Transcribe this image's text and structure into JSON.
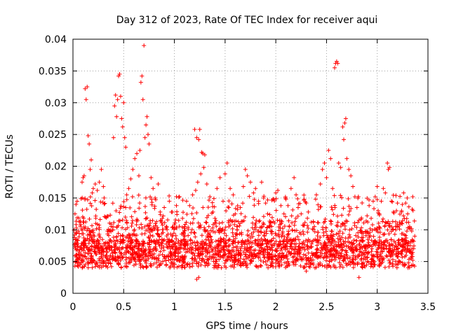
{
  "chart_data": {
    "type": "scatter",
    "title": "Day 312 of 2023, Rate Of TEC Index for receiver aqui",
    "xlabel": "GPS time / hours",
    "ylabel": "ROTI / TECUs",
    "xlim": [
      0,
      3.5
    ],
    "ylim": [
      0,
      0.04
    ],
    "xticks": [
      0,
      0.5,
      1,
      1.5,
      2,
      2.5,
      3,
      3.5
    ],
    "xtick_labels": [
      "0",
      "0.5",
      "1",
      "1.5",
      "2",
      "2.5",
      "3",
      "3.5"
    ],
    "yticks": [
      0,
      0.005,
      0.01,
      0.015,
      0.02,
      0.025,
      0.03,
      0.035,
      0.04
    ],
    "ytick_labels": [
      "0",
      "0.005",
      "0.01",
      "0.015",
      "0.02",
      "0.025",
      "0.03",
      "0.035",
      "0.04"
    ],
    "grid": true,
    "marker": "+",
    "color": "#ff0000",
    "series": [
      {
        "name": "ROTI",
        "points": [
          [
            0.02,
            0.0125
          ],
          [
            0.03,
            0.014
          ],
          [
            0.05,
            0.0098
          ],
          [
            0.06,
            0.0062
          ],
          [
            0.07,
            0.0045
          ],
          [
            0.08,
            0.0075
          ],
          [
            0.09,
            0.0175
          ],
          [
            0.1,
            0.0182
          ],
          [
            0.11,
            0.0185
          ],
          [
            0.12,
            0.0322
          ],
          [
            0.13,
            0.0305
          ],
          [
            0.14,
            0.0325
          ],
          [
            0.15,
            0.0248
          ],
          [
            0.16,
            0.0235
          ],
          [
            0.17,
            0.0195
          ],
          [
            0.18,
            0.021
          ],
          [
            0.19,
            0.0158
          ],
          [
            0.2,
            0.0165
          ],
          [
            0.22,
            0.0172
          ],
          [
            0.24,
            0.0162
          ],
          [
            0.26,
            0.0175
          ],
          [
            0.28,
            0.0195
          ],
          [
            0.3,
            0.0168
          ],
          [
            0.32,
            0.012
          ],
          [
            0.34,
            0.0098
          ],
          [
            0.36,
            0.0075
          ],
          [
            0.38,
            0.0042
          ],
          [
            0.4,
            0.0245
          ],
          [
            0.41,
            0.0295
          ],
          [
            0.42,
            0.0312
          ],
          [
            0.43,
            0.0278
          ],
          [
            0.44,
            0.0305
          ],
          [
            0.45,
            0.0342
          ],
          [
            0.46,
            0.0345
          ],
          [
            0.47,
            0.031
          ],
          [
            0.48,
            0.0275
          ],
          [
            0.49,
            0.0262
          ],
          [
            0.5,
            0.03
          ],
          [
            0.51,
            0.0245
          ],
          [
            0.52,
            0.023
          ],
          [
            0.53,
            0.0155
          ],
          [
            0.55,
            0.0165
          ],
          [
            0.57,
            0.018
          ],
          [
            0.59,
            0.0195
          ],
          [
            0.61,
            0.0212
          ],
          [
            0.63,
            0.022
          ],
          [
            0.65,
            0.0185
          ],
          [
            0.66,
            0.0225
          ],
          [
            0.67,
            0.0332
          ],
          [
            0.68,
            0.0342
          ],
          [
            0.69,
            0.0305
          ],
          [
            0.7,
            0.039
          ],
          [
            0.71,
            0.0245
          ],
          [
            0.72,
            0.0265
          ],
          [
            0.73,
            0.0278
          ],
          [
            0.74,
            0.025
          ],
          [
            0.75,
            0.0235
          ],
          [
            0.77,
            0.0182
          ],
          [
            0.79,
            0.0165
          ],
          [
            0.81,
            0.015
          ],
          [
            0.84,
            0.0172
          ],
          [
            0.86,
            0.0128
          ],
          [
            0.88,
            0.0118
          ],
          [
            0.9,
            0.0135
          ],
          [
            0.92,
            0.0105
          ],
          [
            0.95,
            0.0145
          ],
          [
            0.98,
            0.0128
          ],
          [
            1.0,
            0.0108
          ],
          [
            1.02,
            0.0138
          ],
          [
            1.05,
            0.0152
          ],
          [
            1.08,
            0.0118
          ],
          [
            1.1,
            0.0105
          ],
          [
            1.12,
            0.0145
          ],
          [
            1.15,
            0.0138
          ],
          [
            1.18,
            0.0155
          ],
          [
            1.2,
            0.0258
          ],
          [
            1.21,
            0.0162
          ],
          [
            1.22,
            0.0245
          ],
          [
            1.23,
            0.0175
          ],
          [
            1.24,
            0.0242
          ],
          [
            1.25,
            0.0258
          ],
          [
            1.26,
            0.0188
          ],
          [
            1.27,
            0.0222
          ],
          [
            1.28,
            0.022
          ],
          [
            1.29,
            0.0198
          ],
          [
            1.3,
            0.0218
          ],
          [
            1.32,
            0.0172
          ],
          [
            1.35,
            0.0152
          ],
          [
            1.38,
            0.0128
          ],
          [
            1.4,
            0.0118
          ],
          [
            1.42,
            0.0165
          ],
          [
            1.45,
            0.0182
          ],
          [
            1.48,
            0.0145
          ],
          [
            1.5,
            0.0188
          ],
          [
            1.52,
            0.0205
          ],
          [
            1.55,
            0.0165
          ],
          [
            1.58,
            0.0155
          ],
          [
            1.6,
            0.0125
          ],
          [
            1.62,
            0.0105
          ],
          [
            1.65,
            0.0135
          ],
          [
            1.68,
            0.0168
          ],
          [
            1.7,
            0.0195
          ],
          [
            1.72,
            0.0185
          ],
          [
            1.75,
            0.0175
          ],
          [
            1.78,
            0.0158
          ],
          [
            1.8,
            0.0165
          ],
          [
            1.83,
            0.0145
          ],
          [
            1.86,
            0.0175
          ],
          [
            1.88,
            0.015
          ],
          [
            1.9,
            0.0142
          ],
          [
            1.92,
            0.0125
          ],
          [
            1.95,
            0.0112
          ],
          [
            1.98,
            0.0148
          ],
          [
            2.0,
            0.0158
          ],
          [
            2.02,
            0.0162
          ],
          [
            2.05,
            0.0138
          ],
          [
            2.08,
            0.0125
          ],
          [
            2.1,
            0.0148
          ],
          [
            2.12,
            0.0138
          ],
          [
            2.15,
            0.0165
          ],
          [
            2.18,
            0.0182
          ],
          [
            2.2,
            0.0155
          ],
          [
            2.22,
            0.0135
          ],
          [
            2.25,
            0.0125
          ],
          [
            2.28,
            0.0148
          ],
          [
            2.3,
            0.0142
          ],
          [
            2.32,
            0.0128
          ],
          [
            2.35,
            0.0112
          ],
          [
            2.38,
            0.0105
          ],
          [
            2.4,
            0.0155
          ],
          [
            2.42,
            0.0132
          ],
          [
            2.44,
            0.0172
          ],
          [
            2.46,
            0.0195
          ],
          [
            2.48,
            0.0205
          ],
          [
            2.5,
            0.0182
          ],
          [
            2.52,
            0.0225
          ],
          [
            2.54,
            0.0212
          ],
          [
            2.56,
            0.0165
          ],
          [
            2.58,
            0.0355
          ],
          [
            2.59,
            0.0362
          ],
          [
            2.6,
            0.0365
          ],
          [
            2.61,
            0.0362
          ],
          [
            2.62,
            0.0205
          ],
          [
            2.64,
            0.0198
          ],
          [
            2.66,
            0.0262
          ],
          [
            2.67,
            0.0242
          ],
          [
            2.68,
            0.0268
          ],
          [
            2.69,
            0.0275
          ],
          [
            2.7,
            0.0212
          ],
          [
            2.72,
            0.0195
          ],
          [
            2.74,
            0.0185
          ],
          [
            2.76,
            0.0168
          ],
          [
            2.78,
            0.0152
          ],
          [
            2.8,
            0.0135
          ],
          [
            2.82,
            0.0115
          ],
          [
            2.84,
            0.0098
          ],
          [
            2.86,
            0.0088
          ],
          [
            2.88,
            0.0075
          ],
          [
            2.9,
            0.0122
          ],
          [
            2.92,
            0.0138
          ],
          [
            2.94,
            0.0118
          ],
          [
            2.96,
            0.0145
          ],
          [
            2.98,
            0.0152
          ],
          [
            3.0,
            0.0168
          ],
          [
            3.02,
            0.0125
          ],
          [
            3.04,
            0.0145
          ],
          [
            3.06,
            0.0165
          ],
          [
            3.08,
            0.0158
          ],
          [
            3.1,
            0.0205
          ],
          [
            3.11,
            0.0195
          ],
          [
            3.12,
            0.0198
          ],
          [
            3.14,
            0.0145
          ],
          [
            3.16,
            0.0128
          ],
          [
            3.18,
            0.0105
          ],
          [
            3.2,
            0.0142
          ],
          [
            3.22,
            0.0112
          ],
          [
            3.24,
            0.0128
          ],
          [
            3.26,
            0.0158
          ],
          [
            3.28,
            0.0142
          ],
          [
            3.3,
            0.0125
          ],
          [
            3.32,
            0.0105
          ],
          [
            3.34,
            0.0098
          ],
          [
            3.35,
            0.0152
          ],
          [
            3.36,
            0.0082
          ],
          [
            0.04,
            0.0048
          ],
          [
            0.12,
            0.0058
          ],
          [
            0.2,
            0.0052
          ],
          [
            0.28,
            0.0065
          ],
          [
            0.35,
            0.0048
          ],
          [
            0.44,
            0.0058
          ],
          [
            0.52,
            0.0072
          ],
          [
            0.6,
            0.0055
          ],
          [
            0.7,
            0.0068
          ],
          [
            0.8,
            0.0062
          ],
          [
            0.9,
            0.0058
          ],
          [
            1.0,
            0.0065
          ],
          [
            1.1,
            0.0048
          ],
          [
            1.18,
            0.0055
          ],
          [
            1.22,
            0.0022
          ],
          [
            1.24,
            0.0025
          ],
          [
            1.26,
            0.0062
          ],
          [
            1.35,
            0.0058
          ],
          [
            1.45,
            0.0068
          ],
          [
            1.55,
            0.0062
          ],
          [
            1.65,
            0.0055
          ],
          [
            1.75,
            0.0072
          ],
          [
            1.85,
            0.0065
          ],
          [
            1.95,
            0.0058
          ],
          [
            2.05,
            0.0068
          ],
          [
            2.15,
            0.0062
          ],
          [
            2.25,
            0.0055
          ],
          [
            2.3,
            0.0035
          ],
          [
            2.35,
            0.0052
          ],
          [
            2.45,
            0.0068
          ],
          [
            2.55,
            0.0062
          ],
          [
            2.65,
            0.0058
          ],
          [
            2.75,
            0.0048
          ],
          [
            2.82,
            0.0025
          ],
          [
            2.85,
            0.0042
          ],
          [
            2.95,
            0.0055
          ],
          [
            3.05,
            0.0052
          ],
          [
            3.15,
            0.0045
          ],
          [
            3.25,
            0.0048
          ],
          [
            3.35,
            0.0052
          ]
        ]
      }
    ]
  }
}
